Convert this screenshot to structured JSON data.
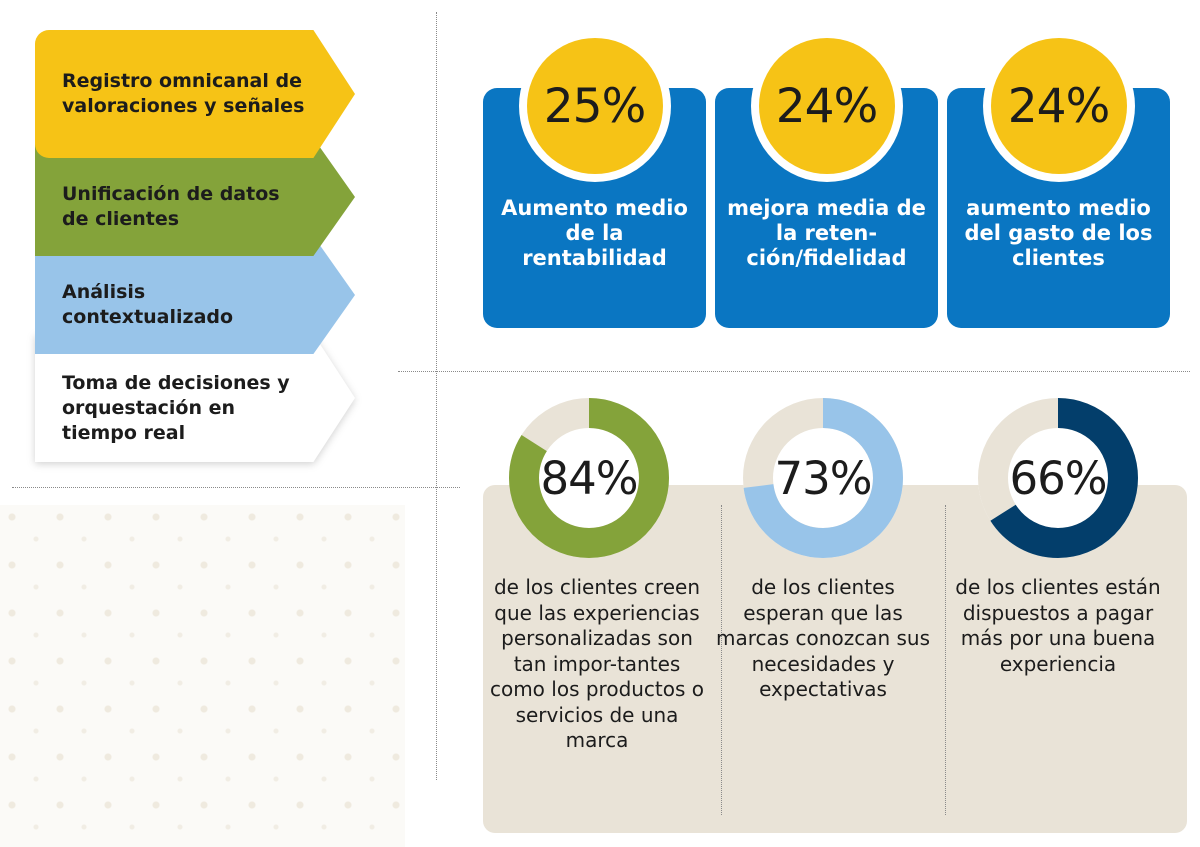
{
  "steps": [
    {
      "label": "Registro omnicanal de valoraciones y señales",
      "color": "#f6c316"
    },
    {
      "label": "Unificación de datos de clientes",
      "color": "#84a33a"
    },
    {
      "label": "Análisis contextualizado",
      "color": "#98c4e9"
    },
    {
      "label": "Toma de decisiones y orquestación en tiempo real",
      "color": "#ffffff"
    }
  ],
  "top_stats": [
    {
      "value": "25%",
      "description": "Aumento medio de la rentabilidad"
    },
    {
      "value": "24%",
      "description": "mejora media de la reten-ción/fidelidad"
    },
    {
      "value": "24%",
      "description": "aumento medio del gasto de los clientes"
    }
  ],
  "chart_data": {
    "type": "pie",
    "series": [
      {
        "value_label": "84%",
        "percent": 84,
        "color": "#84a33a",
        "track_color": "#e9e3d7",
        "description": "de los clientes creen que las experiencias personalizadas son tan impor-tantes como los productos o servicios de una marca"
      },
      {
        "value_label": "73%",
        "percent": 73,
        "color": "#98c4e9",
        "track_color": "#e9e3d7",
        "description": "de los clientes esperan que las marcas conozcan sus necesidades y expectativas"
      },
      {
        "value_label": "66%",
        "percent": 66,
        "color": "#033e6b",
        "track_color": "#e9e3d7",
        "description": "de los clientes están dispuestos a pagar más por una buena experiencia"
      }
    ]
  },
  "colors": {
    "card_blue": "#0a76c2",
    "bubble_yellow": "#f6c316",
    "panel_beige": "#e9e3d7"
  }
}
